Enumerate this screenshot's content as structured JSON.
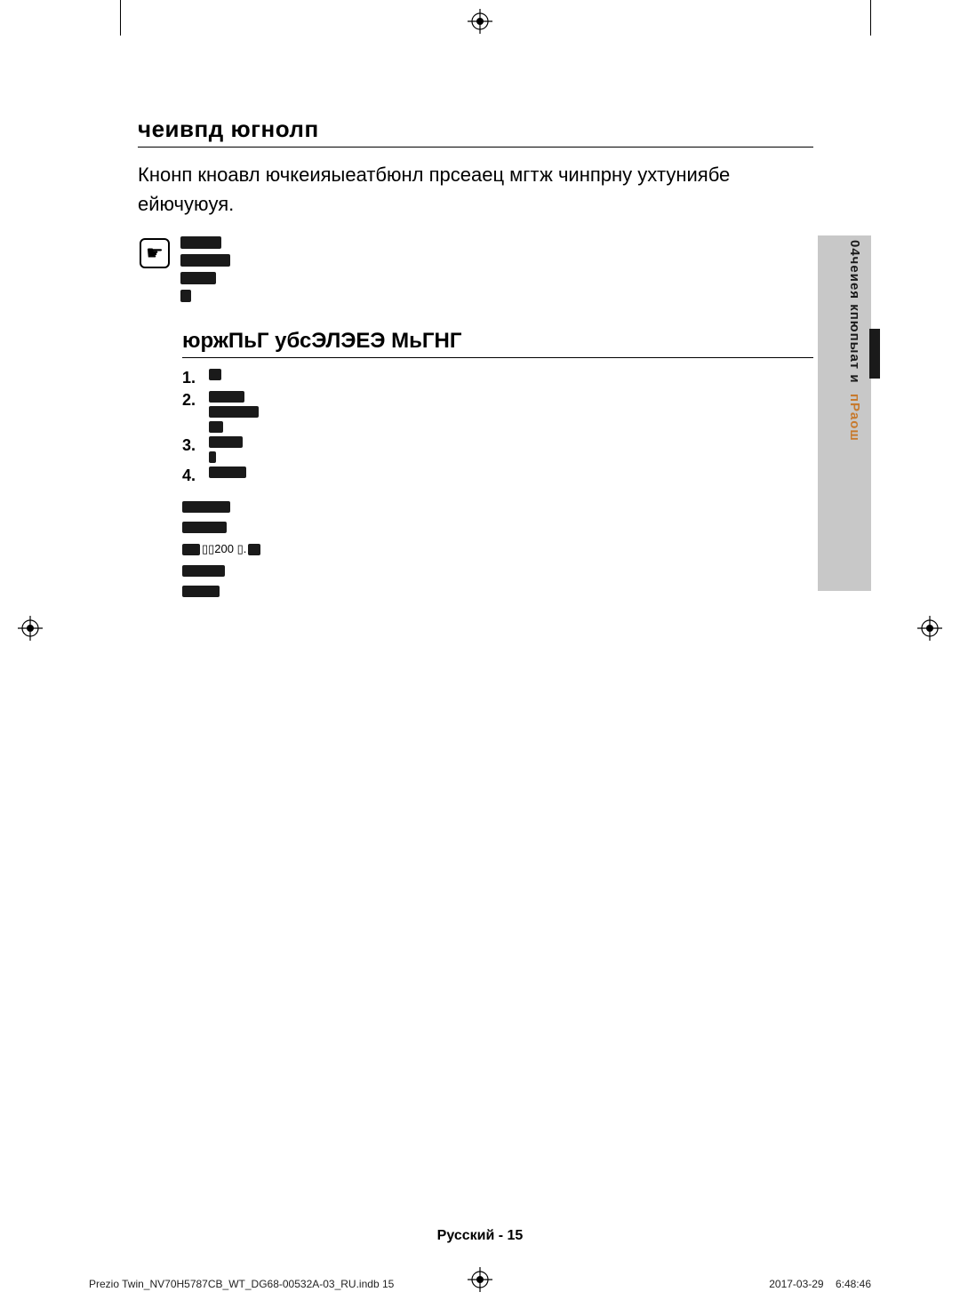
{
  "document": {
    "section_title": "чеивпд югнолп",
    "intro": "Кнонп кноавл ючкеияыеатбюнл прсеаец мгтж чинпрну ухтуниябе ейючуюуя.",
    "note_icon_glyph": "☛",
    "note_lines": [
      46,
      56,
      40,
      12
    ],
    "sub_heading": "юржПьГ убсЭЛЭЕЭ МьГНГ",
    "list": [
      {
        "num": "1.",
        "bars": [
          14
        ]
      },
      {
        "num": "2.",
        "bars": [
          40,
          56,
          16
        ]
      },
      {
        "num": "3.",
        "bars": [
          38,
          8
        ]
      },
      {
        "num": "4.",
        "bars": [
          42
        ]
      }
    ],
    "trailing_bars": [
      54,
      50
    ],
    "mixed_line": {
      "bar1": 20,
      "text1": " ▯▯200 ▯. ",
      "bar2": 14
    },
    "trailing_bars2": [
      48,
      42
    ],
    "side_label_black": "04чеиея кпюпыат и",
    "side_label_orange": "пРаош",
    "footer_page": "Русский - 15",
    "footer_file": "Prezio Twin_NV70H5787CB_WT_DG68-00532A-03_RU.indb   15",
    "footer_date": "2017-03-29",
    "footer_time": "6:48:46"
  },
  "colors": {
    "bar": "#1a1a1a",
    "side_gray": "#c8c8c8",
    "side_orange": "#c77a2e"
  }
}
